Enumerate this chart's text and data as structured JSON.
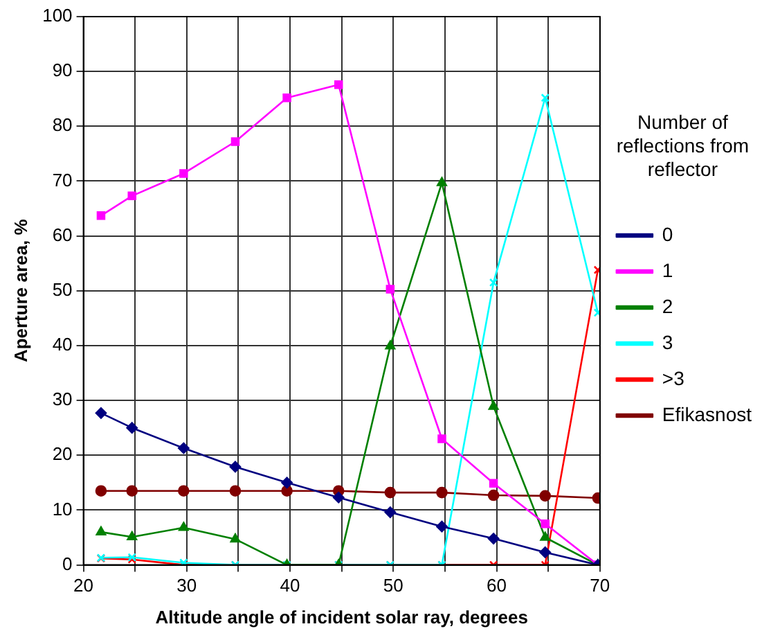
{
  "chart_data": {
    "type": "line",
    "xlabel": "Altitude angle of incident solar ray, degrees",
    "ylabel": "Aperture area, %",
    "legend_title": "Number of reflections from reflector",
    "x": [
      21.7,
      24.7,
      29.7,
      34.7,
      39.7,
      44.7,
      49.7,
      54.7,
      59.7,
      64.7,
      69.8
    ],
    "series": [
      {
        "name": "0",
        "color": "#000080",
        "marker": "diamond",
        "values": [
          27.7,
          25.0,
          21.3,
          17.9,
          15.0,
          12.3,
          9.6,
          7.0,
          4.8,
          2.3,
          0
        ]
      },
      {
        "name": "1",
        "color": "#ff00ff",
        "marker": "square",
        "values": [
          63.7,
          67.3,
          71.4,
          77.2,
          85.2,
          87.6,
          50.3,
          23.0,
          14.9,
          7.5,
          0
        ]
      },
      {
        "name": "2",
        "color": "#008000",
        "marker": "triangle",
        "values": [
          6.0,
          5.1,
          6.8,
          4.7,
          0,
          0,
          39.9,
          69.7,
          28.9,
          5.0,
          0
        ]
      },
      {
        "name": "3",
        "color": "#00ffff",
        "marker": "cross",
        "values": [
          1.3,
          1.4,
          0.4,
          0,
          0,
          0,
          0,
          0,
          51.5,
          85.2,
          46.0
        ]
      },
      {
        "name": ">3",
        "color": "#ff0000",
        "marker": "cross",
        "values": [
          1.2,
          1.0,
          0,
          0,
          0,
          0,
          0,
          0,
          0,
          0,
          53.8
        ]
      },
      {
        "name": "Efikasnost",
        "color": "#800000",
        "marker": "circle",
        "values": [
          13.5,
          13.5,
          13.5,
          13.5,
          13.5,
          13.5,
          13.2,
          13.2,
          12.7,
          12.6,
          12.2
        ]
      }
    ],
    "xlim": [
      20,
      70
    ],
    "xticks": [
      20,
      {
        "value": 25,
        "label": null
      },
      30,
      {
        "value": 35,
        "label": null
      },
      40,
      {
        "value": 45,
        "label": null
      },
      50,
      {
        "value": 55,
        "label": null
      },
      60,
      {
        "value": 65,
        "label": null
      },
      70
    ],
    "ylim": [
      0,
      100
    ],
    "yticks": [
      0,
      10,
      20,
      30,
      40,
      50,
      60,
      70,
      80,
      90,
      100
    ],
    "grid": true,
    "legend": "right",
    "line_style": "solid"
  }
}
